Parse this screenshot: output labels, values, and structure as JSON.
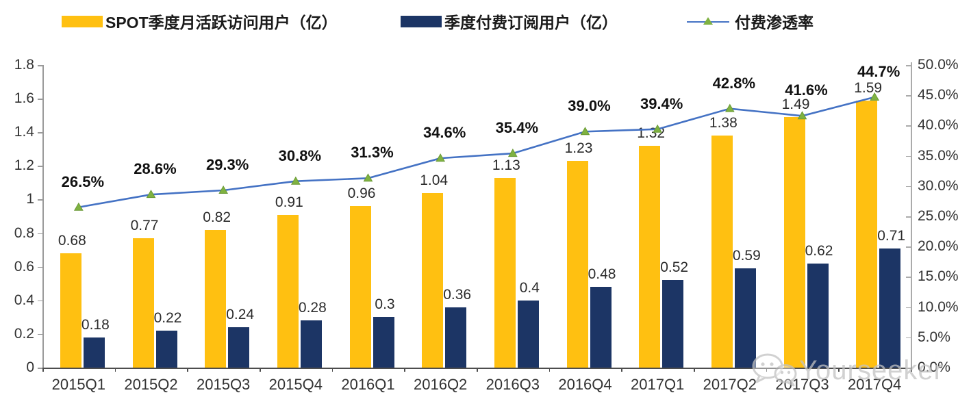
{
  "legend": {
    "items": [
      {
        "label": "SPOT季度月活跃访问用户（亿）",
        "type": "bar-swatch",
        "color": "#FFC011"
      },
      {
        "label": "季度付费订阅用户（亿）",
        "type": "bar-swatch",
        "color": "#1C3565"
      },
      {
        "label": "付费渗透率",
        "type": "line-marker",
        "line_color": "#4472C4",
        "marker_color": "#7FB241"
      }
    ]
  },
  "watermark": {
    "icon": "wechat-icon",
    "text": "Yourseeker"
  },
  "chart_data": {
    "type": "bar",
    "subtype": "grouped-bars-with-line",
    "categories": [
      "2015Q1",
      "2015Q2",
      "2015Q3",
      "2015Q4",
      "2016Q1",
      "2016Q2",
      "2016Q3",
      "2016Q4",
      "2017Q1",
      "2017Q2",
      "2017Q3",
      "2017Q4"
    ],
    "series": [
      {
        "name": "SPOT季度月活跃访问用户（亿）",
        "type": "bar",
        "axis": "left",
        "color": "#FFC011",
        "values": [
          0.68,
          0.77,
          0.82,
          0.91,
          0.96,
          1.04,
          1.13,
          1.23,
          1.32,
          1.38,
          1.49,
          1.59
        ],
        "labels": [
          "0.68",
          "0.77",
          "0.82",
          "0.91",
          "0.96",
          "1.04",
          "1.13",
          "1.23",
          "1.32",
          "1.38",
          "1.49",
          "1.59"
        ]
      },
      {
        "name": "季度付费订阅用户（亿）",
        "type": "bar",
        "axis": "left",
        "color": "#1C3565",
        "values": [
          0.18,
          0.22,
          0.24,
          0.28,
          0.3,
          0.36,
          0.4,
          0.48,
          0.52,
          0.59,
          0.62,
          0.71
        ],
        "labels": [
          "0.18",
          "0.22",
          "0.24",
          "0.28",
          "0.3",
          "0.36",
          "0.4",
          "0.48",
          "0.52",
          "0.59",
          "0.62",
          "0.71"
        ]
      },
      {
        "name": "付费渗透率",
        "type": "line",
        "axis": "right",
        "color": "#4472C4",
        "marker": "triangle",
        "marker_color": "#7FB241",
        "values": [
          26.5,
          28.6,
          29.3,
          30.8,
          31.3,
          34.6,
          35.4,
          39.0,
          39.4,
          42.8,
          41.6,
          44.7
        ],
        "labels": [
          "26.5%",
          "28.6%",
          "29.3%",
          "30.8%",
          "31.3%",
          "34.6%",
          "35.4%",
          "39.0%",
          "39.4%",
          "42.8%",
          "41.6%",
          "44.7%"
        ]
      }
    ],
    "left_axis": {
      "min": 0,
      "max": 1.8,
      "step": 0.2,
      "ticks": [
        "0",
        "0.2",
        "0.4",
        "0.6",
        "0.8",
        "1",
        "1.2",
        "1.4",
        "1.6",
        "1.8"
      ]
    },
    "right_axis": {
      "min": 0,
      "max": 50,
      "step": 5,
      "ticks": [
        "0.0%",
        "5.0%",
        "10.0%",
        "15.0%",
        "20.0%",
        "25.0%",
        "30.0%",
        "35.0%",
        "40.0%",
        "45.0%",
        "50.0%"
      ]
    },
    "grid": false,
    "legend_position": "top",
    "title": "",
    "xlabel": "",
    "ylabel": ""
  }
}
